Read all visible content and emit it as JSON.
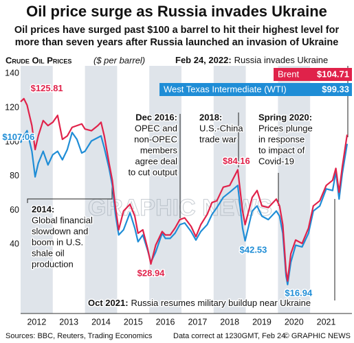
{
  "chart_data": {
    "type": "line",
    "title": "Oil price surge as Russia invades Ukraine",
    "subtitle": [
      "Oil prices have surged past $100 a barrel to hit their highest level for",
      "more than seven years after Russia launched an invasion of Ukraine"
    ],
    "chart_label": "Crude Oil Prices",
    "y_label": "($ per barrel)",
    "x": [
      2012.0,
      2012.1,
      2012.2,
      2012.35,
      2012.45,
      2012.55,
      2012.7,
      2012.85,
      2013.0,
      2013.15,
      2013.3,
      2013.45,
      2013.6,
      2013.75,
      2013.9,
      2014.0,
      2014.2,
      2014.4,
      2014.5,
      2014.6,
      2014.75,
      2014.85,
      2014.95,
      2015.05,
      2015.2,
      2015.4,
      2015.55,
      2015.65,
      2015.8,
      2015.95,
      2016.05,
      2016.2,
      2016.4,
      2016.5,
      2016.65,
      2016.8,
      2016.95,
      2017.1,
      2017.3,
      2017.45,
      2017.6,
      2017.8,
      2017.95,
      2018.1,
      2018.3,
      2018.5,
      2018.75,
      2018.9,
      2018.98,
      2019.2,
      2019.35,
      2019.5,
      2019.7,
      2019.95,
      2020.05,
      2020.15,
      2020.25,
      2020.3,
      2020.4,
      2020.55,
      2020.75,
      2020.95,
      2021.1,
      2021.3,
      2021.5,
      2021.7,
      2021.8,
      2021.9,
      2022.0,
      2022.15
    ],
    "series": [
      {
        "name": "Brent",
        "color": "#e0224a",
        "values": [
          124,
          125.81,
          122,
          110,
          96,
          104,
          113,
          110,
          112,
          116,
          102,
          104,
          109,
          110,
          111,
          108,
          107,
          110,
          112,
          104,
          88,
          78,
          62,
          49,
          60,
          64,
          57,
          47,
          49,
          38,
          28.94,
          40,
          48,
          46,
          46,
          50,
          55,
          56,
          51,
          45,
          52,
          58,
          65,
          66,
          74,
          75,
          84.16,
          60,
          52,
          68,
          72,
          63,
          62,
          67,
          63,
          52,
          25,
          19,
          35,
          43,
          41,
          50,
          63,
          66,
          75,
          78,
          85,
          71,
          86,
          104.71
        ],
        "value_labels": [
          null,
          "$125.81",
          null,
          null,
          null,
          null,
          null,
          null,
          null,
          null,
          null,
          null,
          null,
          null,
          null,
          null,
          null,
          null,
          null,
          null,
          null,
          null,
          null,
          null,
          null,
          null,
          null,
          null,
          null,
          null,
          "$28.94",
          null,
          null,
          null,
          null,
          null,
          null,
          null,
          null,
          null,
          null,
          null,
          null,
          null,
          null,
          null,
          "$84.16",
          null,
          null,
          null,
          null,
          null,
          null,
          null,
          null,
          null,
          null,
          null,
          null,
          null,
          null,
          null,
          null,
          null,
          null,
          null,
          null,
          null,
          null,
          "$104.71"
        ]
      },
      {
        "name": "West Texas Intermediate (WTI)",
        "color": "#1f8dd6",
        "values": [
          100,
          104,
          107.06,
          95,
          80,
          88,
          95,
          87,
          93,
          95,
          90,
          96,
          106,
          102,
          94,
          95,
          101,
          103,
          104,
          97,
          85,
          75,
          58,
          46,
          49,
          59,
          50,
          42,
          46,
          37,
          30,
          36,
          47,
          44,
          44,
          47,
          52,
          53,
          48,
          43,
          48,
          52,
          58,
          62,
          68,
          71,
          75,
          50,
          42.53,
          60,
          63,
          57,
          55,
          60,
          57,
          47,
          22,
          16.94,
          30,
          40,
          39,
          47,
          60,
          63,
          73,
          72,
          83,
          67,
          82,
          99.33
        ],
        "value_labels": [
          null,
          null,
          "$107.06",
          null,
          null,
          null,
          null,
          null,
          null,
          null,
          null,
          null,
          null,
          null,
          null,
          null,
          null,
          null,
          null,
          null,
          null,
          null,
          null,
          null,
          null,
          null,
          null,
          null,
          null,
          null,
          null,
          null,
          null,
          null,
          null,
          null,
          null,
          null,
          null,
          null,
          null,
          null,
          null,
          null,
          null,
          null,
          null,
          null,
          "$42.53",
          null,
          null,
          null,
          null,
          null,
          null,
          null,
          null,
          "$16.94",
          null,
          null,
          null,
          null,
          null,
          null,
          null,
          null,
          null,
          null,
          null,
          "$99.33"
        ]
      }
    ],
    "xlim": [
      2012,
      2022.3
    ],
    "xticks": [
      {
        "value": 2012.5,
        "label": "2012"
      },
      {
        "value": 2013.5,
        "label": "2013"
      },
      {
        "value": 2014.5,
        "label": "2014"
      },
      {
        "value": 2015.5,
        "label": "2015"
      },
      {
        "value": 2016.5,
        "label": "2016"
      },
      {
        "value": 2017.5,
        "label": "2017"
      },
      {
        "value": 2018.5,
        "label": "2018"
      },
      {
        "value": 2019.5,
        "label": "2019"
      },
      {
        "value": 2020.5,
        "label": "2020"
      },
      {
        "value": 2021.5,
        "label": "2021"
      }
    ],
    "ylim": [
      0,
      145
    ],
    "yticks": [
      40,
      60,
      80,
      100,
      120,
      140
    ],
    "annotations": [
      {
        "title": "Feb 24, 2022:",
        "lines": [
          "Russia invades Ukraine"
        ]
      },
      {
        "title": "Dec 2016:",
        "lines": [
          "OPEC and",
          "non-OPEC",
          "members",
          "agree deal",
          "to cut output"
        ]
      },
      {
        "title": "2018:",
        "lines": [
          "U.S.-China",
          "trade war"
        ]
      },
      {
        "title": "Spring 2020:",
        "lines": [
          "Prices plunge",
          "in response",
          "to impact of",
          "Covid-19"
        ]
      },
      {
        "title": "2014:",
        "lines": [
          "Global financial",
          "slowdown and",
          "boom in U.S.",
          "shale oil",
          "production"
        ]
      },
      {
        "title": "Oct 2021:",
        "lines": [
          "Russia resumes military buildup near Ukraine"
        ]
      }
    ],
    "watermark": "GRAPHIC NEWS",
    "footer": [
      "Sources: BBC, Reuters, Trading Economics",
      "Data correct at 1230GMT, Feb 24",
      "© GRAPHIC NEWS"
    ]
  }
}
